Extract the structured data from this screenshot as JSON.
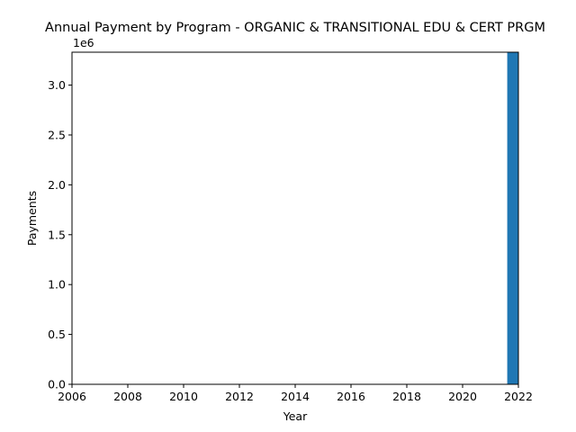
{
  "chart_data": {
    "type": "bar",
    "title": "Annual Payment by Program - ORGANIC & TRANSITIONAL EDU & CERT PRGM",
    "xlabel": "Year",
    "ylabel": "Payments",
    "y_scale_label": "1e6",
    "xlim": [
      2006,
      2022
    ],
    "ylim": [
      0,
      3330000
    ],
    "x_ticks": [
      2006,
      2008,
      2010,
      2012,
      2014,
      2016,
      2018,
      2020,
      2022
    ],
    "x_tick_labels": [
      "2006",
      "2008",
      "2010",
      "2012",
      "2014",
      "2016",
      "2018",
      "2020",
      "2022"
    ],
    "y_ticks": [
      0,
      500000,
      1000000,
      1500000,
      2000000,
      2500000,
      3000000
    ],
    "y_tick_labels": [
      "0.0",
      "0.5",
      "1.0",
      "1.5",
      "2.0",
      "2.5",
      "3.0"
    ],
    "categories": [
      2022
    ],
    "values": [
      3330000
    ],
    "bar_width": 0.8,
    "grid": false,
    "legend": "none",
    "colors": {
      "bar": "#1f77b4",
      "axes": "#000000"
    }
  }
}
